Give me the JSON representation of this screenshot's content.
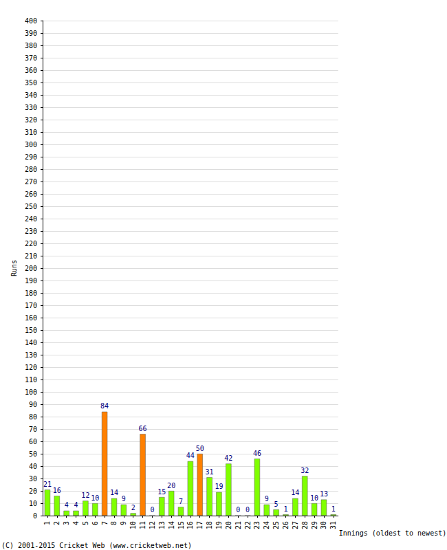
{
  "chart_data": {
    "type": "bar",
    "x_label": "Innings (oldest to newest)",
    "y_label": "Runs",
    "annotations": [
      "(C) 2001-2015 Cricket Web (www.cricketweb.net)"
    ],
    "categories": [
      "1",
      "2",
      "3",
      "4",
      "5",
      "6",
      "7",
      "8",
      "9",
      "10",
      "11",
      "12",
      "13",
      "14",
      "15",
      "16",
      "17",
      "18",
      "19",
      "20",
      "21",
      "22",
      "23",
      "24",
      "25",
      "26",
      "27",
      "28",
      "29",
      "30",
      "31"
    ],
    "values": [
      21,
      16,
      4,
      4,
      12,
      10,
      84,
      14,
      9,
      2,
      66,
      0,
      15,
      20,
      7,
      44,
      50,
      31,
      19,
      42,
      0,
      0,
      46,
      9,
      5,
      1,
      14,
      32,
      10,
      13,
      1
    ],
    "colors": [
      "#80ff00",
      "#80ff00",
      "#80ff00",
      "#80ff00",
      "#80ff00",
      "#80ff00",
      "#ff8000",
      "#80ff00",
      "#80ff00",
      "#80ff00",
      "#ff8000",
      "#80ff00",
      "#80ff00",
      "#80ff00",
      "#80ff00",
      "#80ff00",
      "#ff8000",
      "#80ff00",
      "#80ff00",
      "#80ff00",
      "#80ff00",
      "#80ff00",
      "#80ff00",
      "#80ff00",
      "#80ff00",
      "#80ff00",
      "#80ff00",
      "#80ff00",
      "#80ff00",
      "#80ff00",
      "#80ff00"
    ],
    "ylim": [
      0,
      400
    ],
    "yticks": [
      0,
      10,
      20,
      30,
      40,
      50,
      60,
      70,
      80,
      90,
      100,
      110,
      120,
      130,
      140,
      150,
      160,
      170,
      180,
      190,
      200,
      210,
      220,
      230,
      240,
      250,
      260,
      270,
      280,
      290,
      300,
      310,
      320,
      330,
      340,
      350,
      360,
      370,
      380,
      390,
      400
    ],
    "grid": true,
    "data_labels": true
  }
}
